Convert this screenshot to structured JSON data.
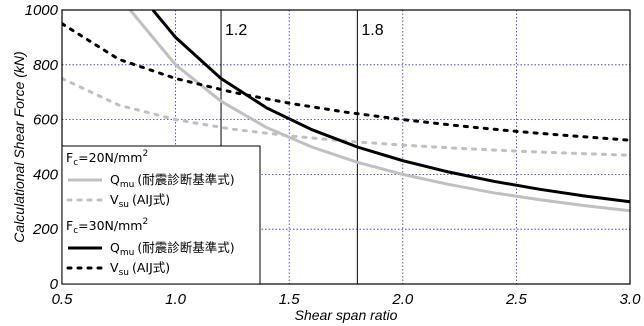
{
  "chart_data": {
    "type": "line",
    "xlabel": "Shear span ratio",
    "ylabel": "Calculational Shear Force (kN)",
    "xlim": [
      0.5,
      3.0
    ],
    "ylim": [
      0,
      1000
    ],
    "xticks": [
      "0.5",
      "1.0",
      "1.5",
      "2.0",
      "2.5",
      "3.0"
    ],
    "yticks": [
      "0",
      "200",
      "400",
      "600",
      "800",
      "1000"
    ],
    "grid": true,
    "legend_position": "bottom-left",
    "reference_lines": [
      {
        "x": 1.2,
        "label": "1.2"
      },
      {
        "x": 1.8,
        "label": "1.8"
      }
    ],
    "legend": {
      "group1_prefix": "F",
      "group1_sub": "c",
      "group1_suffix": "=20N/mm",
      "group1_sup": "2",
      "group2_prefix": "F",
      "group2_sub": "c",
      "group2_suffix": "=30N/mm",
      "group2_sup": "2",
      "q_main": "Q",
      "q_sub": "mu",
      "q_note": "(耐震診断基準式)",
      "v_main": "V",
      "v_sub": "su",
      "v_note": "(AIJ式)"
    },
    "series": [
      {
        "color": "#c0c0c0",
        "style": "solid",
        "x": [
          0.8,
          1.0,
          1.2,
          1.4,
          1.6,
          1.8,
          2.0,
          2.2,
          2.4,
          2.6,
          2.8,
          3.0
        ],
        "y": [
          1000,
          800,
          667,
          571,
          500,
          444,
          400,
          364,
          333,
          308,
          286,
          267
        ]
      },
      {
        "color": "#c0c0c0",
        "style": "dotted",
        "x": [
          0.5,
          0.75,
          1.0,
          1.25,
          1.5,
          1.75,
          2.0,
          2.25,
          2.5,
          2.75,
          3.0
        ],
        "y": [
          750,
          653,
          600,
          565,
          541,
          521,
          507,
          495,
          485,
          477,
          470
        ]
      },
      {
        "color": "#000000",
        "style": "solid",
        "x": [
          0.9,
          1.0,
          1.2,
          1.4,
          1.6,
          1.8,
          2.0,
          2.2,
          2.4,
          2.6,
          2.8,
          3.0
        ],
        "y": [
          1000,
          900,
          750,
          643,
          563,
          500,
          450,
          409,
          375,
          346,
          321,
          300
        ]
      },
      {
        "color": "#000000",
        "style": "dotted",
        "x": [
          0.5,
          0.75,
          1.0,
          1.25,
          1.5,
          1.75,
          2.0,
          2.25,
          2.5,
          2.75,
          3.0
        ],
        "y": [
          950,
          820,
          750,
          700,
          660,
          627,
          600,
          577,
          557,
          540,
          525
        ]
      }
    ]
  }
}
